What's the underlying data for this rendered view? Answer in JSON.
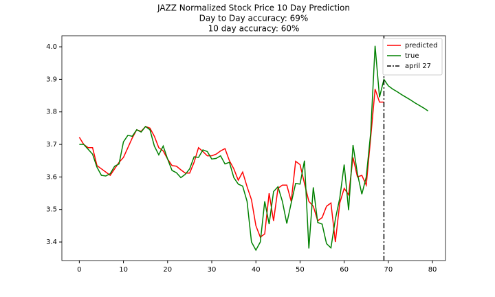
{
  "chart_data": {
    "type": "line",
    "title": [
      "JAZZ Normalized Stock Price 10 Day Prediction",
      "Day to Day accuracy: 69%",
      "10 day accuracy: 60%"
    ],
    "x": [
      0,
      1,
      2,
      3,
      4,
      5,
      6,
      7,
      8,
      9,
      10,
      11,
      12,
      13,
      14,
      15,
      16,
      17,
      18,
      19,
      20,
      21,
      22,
      23,
      24,
      25,
      26,
      27,
      28,
      29,
      30,
      31,
      32,
      33,
      34,
      35,
      36,
      37,
      38,
      39,
      40,
      41,
      42,
      43,
      44,
      45,
      46,
      47,
      48,
      49,
      50,
      51,
      52,
      53,
      54,
      55,
      56,
      57,
      58,
      59,
      60,
      61,
      62,
      63,
      64,
      65,
      66,
      67,
      68,
      69,
      70,
      71,
      72,
      73,
      74,
      75,
      76,
      77,
      78,
      79
    ],
    "series": [
      {
        "name": "predicted",
        "color": "#ff0000",
        "values": [
          3.722,
          3.7,
          3.69,
          3.69,
          3.635,
          3.625,
          3.615,
          3.605,
          3.625,
          3.645,
          3.66,
          3.69,
          3.72,
          3.745,
          3.74,
          3.755,
          3.75,
          3.725,
          3.69,
          3.68,
          3.655,
          3.635,
          3.633,
          3.622,
          3.612,
          3.612,
          3.645,
          3.69,
          3.678,
          3.665,
          3.665,
          3.67,
          3.68,
          3.687,
          3.65,
          3.625,
          3.59,
          3.615,
          3.57,
          3.53,
          3.45,
          3.415,
          3.425,
          3.55,
          3.465,
          3.565,
          3.575,
          3.575,
          3.525,
          3.648,
          3.638,
          3.58,
          3.525,
          3.51,
          3.465,
          3.475,
          3.51,
          3.52,
          3.4,
          3.52,
          3.565,
          3.545,
          3.66,
          3.6,
          3.605,
          3.575,
          3.72,
          3.87,
          3.83,
          3.83,
          null,
          null,
          null,
          null,
          null,
          null,
          null,
          null,
          null,
          null
        ]
      },
      {
        "name": "true",
        "color": "#008000",
        "values": [
          3.7,
          3.7,
          3.685,
          3.67,
          3.63,
          3.605,
          3.603,
          3.61,
          3.633,
          3.64,
          3.708,
          3.728,
          3.725,
          3.745,
          3.738,
          3.755,
          3.745,
          3.695,
          3.668,
          3.695,
          3.655,
          3.62,
          3.613,
          3.598,
          3.608,
          3.625,
          3.662,
          3.66,
          3.683,
          3.678,
          3.655,
          3.657,
          3.665,
          3.64,
          3.645,
          3.598,
          3.578,
          3.572,
          3.525,
          3.4,
          3.375,
          3.4,
          3.525,
          3.455,
          3.555,
          3.57,
          3.525,
          3.457,
          3.52,
          3.58,
          3.578,
          3.65,
          3.38,
          3.568,
          3.46,
          3.455,
          3.395,
          3.382,
          3.47,
          3.535,
          3.638,
          3.498,
          3.698,
          3.61,
          3.547,
          3.6,
          3.735,
          4.003,
          3.845,
          3.9,
          3.88,
          3.87,
          3.862,
          3.853,
          3.845,
          3.837,
          3.828,
          3.82,
          3.812,
          3.803
        ]
      }
    ],
    "vlines": [
      {
        "name": "april 27",
        "x": 69,
        "color": "#000000"
      }
    ],
    "xlim": [
      -3.95,
      82.95
    ],
    "xticks": [
      0,
      10,
      20,
      30,
      40,
      50,
      60,
      70,
      80
    ],
    "ylim": [
      3.343,
      4.034
    ],
    "yticks": [
      {
        "value": 3.4,
        "label": "3.4"
      },
      {
        "value": 3.5,
        "label": "3.5"
      },
      {
        "value": 3.6,
        "label": "3.6"
      },
      {
        "value": 3.7,
        "label": "3.7"
      },
      {
        "value": 3.8,
        "label": "3.8"
      },
      {
        "value": 3.9,
        "label": "3.9"
      },
      {
        "value": 4.0,
        "label": "4.0"
      }
    ],
    "legend": "upper right"
  }
}
